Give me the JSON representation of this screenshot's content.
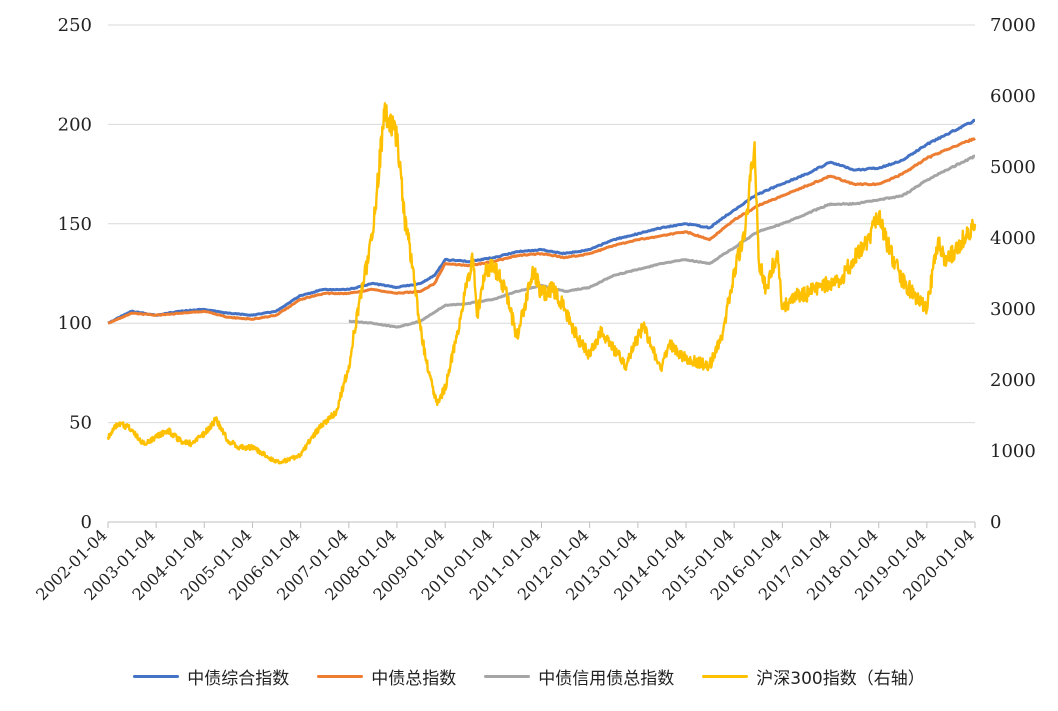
{
  "chart_data": {
    "type": "line",
    "title": "",
    "xlabel": "",
    "ylabel": "",
    "ylim": [
      0,
      250
    ],
    "y2lim": [
      0,
      7000
    ],
    "y_ticks": [
      0,
      50,
      100,
      150,
      200,
      250
    ],
    "y2_ticks": [
      0,
      1000,
      2000,
      3000,
      4000,
      5000,
      6000,
      7000
    ],
    "x_tick_labels": [
      "2002-01-04",
      "2003-01-04",
      "2004-01-04",
      "2005-01-04",
      "2006-01-04",
      "2007-01-04",
      "2008-01-04",
      "2009-01-04",
      "2010-01-04",
      "2011-01-04",
      "2012-01-04",
      "2013-01-04",
      "2014-01-04",
      "2015-01-04",
      "2016-01-04",
      "2017-01-04",
      "2018-01-04",
      "2019-01-04",
      "2020-01-04"
    ],
    "grid": "horizontal",
    "legend_position": "bottom",
    "series": [
      {
        "name": "中债综合指数",
        "color": "#4472C4",
        "axis": "left",
        "points": [
          [
            "2002-01-04",
            100
          ],
          [
            "2002-07-01",
            106
          ],
          [
            "2003-01-04",
            104
          ],
          [
            "2003-07-01",
            106
          ],
          [
            "2004-01-04",
            107
          ],
          [
            "2004-07-01",
            105
          ],
          [
            "2005-01-04",
            104
          ],
          [
            "2005-07-01",
            106
          ],
          [
            "2006-01-04",
            114
          ],
          [
            "2006-07-01",
            117
          ],
          [
            "2007-01-04",
            117
          ],
          [
            "2007-07-01",
            120
          ],
          [
            "2008-01-04",
            118
          ],
          [
            "2008-07-01",
            120
          ],
          [
            "2008-10-15",
            124
          ],
          [
            "2009-01-04",
            132
          ],
          [
            "2009-07-01",
            131
          ],
          [
            "2010-01-04",
            133
          ],
          [
            "2010-07-01",
            136
          ],
          [
            "2011-01-04",
            137
          ],
          [
            "2011-07-01",
            135
          ],
          [
            "2012-01-04",
            137
          ],
          [
            "2012-07-01",
            142
          ],
          [
            "2013-01-04",
            145
          ],
          [
            "2013-07-01",
            148
          ],
          [
            "2014-01-04",
            150
          ],
          [
            "2014-07-01",
            148
          ],
          [
            "2015-01-04",
            157
          ],
          [
            "2015-07-01",
            165
          ],
          [
            "2016-01-04",
            170
          ],
          [
            "2016-07-01",
            175
          ],
          [
            "2017-01-04",
            181
          ],
          [
            "2017-07-01",
            177
          ],
          [
            "2018-01-04",
            178
          ],
          [
            "2018-07-01",
            182
          ],
          [
            "2019-01-04",
            190
          ],
          [
            "2019-07-01",
            196
          ],
          [
            "2020-01-04",
            202
          ]
        ]
      },
      {
        "name": "中债总指数",
        "color": "#ED7D31",
        "axis": "left",
        "points": [
          [
            "2002-01-04",
            100
          ],
          [
            "2002-07-01",
            105
          ],
          [
            "2003-01-04",
            104
          ],
          [
            "2003-07-01",
            105
          ],
          [
            "2004-01-04",
            106
          ],
          [
            "2004-07-01",
            103
          ],
          [
            "2005-01-04",
            102
          ],
          [
            "2005-07-01",
            104
          ],
          [
            "2006-01-04",
            112
          ],
          [
            "2006-07-01",
            115
          ],
          [
            "2007-01-04",
            115
          ],
          [
            "2007-07-01",
            117
          ],
          [
            "2008-01-04",
            115
          ],
          [
            "2008-07-01",
            116
          ],
          [
            "2008-10-15",
            120
          ],
          [
            "2009-01-04",
            130
          ],
          [
            "2009-07-01",
            129
          ],
          [
            "2010-01-04",
            131
          ],
          [
            "2010-07-01",
            134
          ],
          [
            "2011-01-04",
            135
          ],
          [
            "2011-07-01",
            133
          ],
          [
            "2012-01-04",
            135
          ],
          [
            "2012-07-01",
            139
          ],
          [
            "2013-01-04",
            142
          ],
          [
            "2013-07-01",
            144
          ],
          [
            "2014-01-04",
            146
          ],
          [
            "2014-07-01",
            142
          ],
          [
            "2015-01-04",
            152
          ],
          [
            "2015-07-01",
            159
          ],
          [
            "2016-01-04",
            164
          ],
          [
            "2016-07-01",
            169
          ],
          [
            "2017-01-04",
            174
          ],
          [
            "2017-07-01",
            170
          ],
          [
            "2018-01-04",
            170
          ],
          [
            "2018-07-01",
            175
          ],
          [
            "2019-01-04",
            183
          ],
          [
            "2019-07-01",
            188
          ],
          [
            "2020-01-04",
            193
          ]
        ]
      },
      {
        "name": "中债信用债总指数",
        "color": "#A5A5A5",
        "axis": "left",
        "points": [
          [
            "2007-01-04",
            101
          ],
          [
            "2007-07-01",
            100
          ],
          [
            "2008-01-04",
            98
          ],
          [
            "2008-07-01",
            101
          ],
          [
            "2009-01-04",
            109
          ],
          [
            "2009-07-01",
            110
          ],
          [
            "2010-01-04",
            112
          ],
          [
            "2010-07-01",
            116
          ],
          [
            "2011-01-04",
            119
          ],
          [
            "2011-07-01",
            116
          ],
          [
            "2012-01-04",
            118
          ],
          [
            "2012-07-01",
            124
          ],
          [
            "2013-01-04",
            127
          ],
          [
            "2013-07-01",
            130
          ],
          [
            "2014-01-04",
            132
          ],
          [
            "2014-07-01",
            130
          ],
          [
            "2015-01-04",
            138
          ],
          [
            "2015-07-01",
            146
          ],
          [
            "2016-01-04",
            150
          ],
          [
            "2016-07-01",
            155
          ],
          [
            "2017-01-04",
            160
          ],
          [
            "2017-07-01",
            160
          ],
          [
            "2018-01-04",
            162
          ],
          [
            "2018-07-01",
            164
          ],
          [
            "2019-01-04",
            172
          ],
          [
            "2019-07-01",
            178
          ],
          [
            "2020-01-04",
            184
          ]
        ]
      },
      {
        "name": "沪深300指数（右轴）",
        "color": "#FFC000",
        "axis": "right",
        "points": [
          [
            "2002-01-04",
            1200
          ],
          [
            "2002-04-01",
            1400
          ],
          [
            "2002-07-01",
            1300
          ],
          [
            "2002-10-01",
            1100
          ],
          [
            "2003-01-04",
            1200
          ],
          [
            "2003-04-01",
            1300
          ],
          [
            "2003-07-01",
            1150
          ],
          [
            "2003-10-01",
            1100
          ],
          [
            "2004-01-04",
            1250
          ],
          [
            "2004-04-01",
            1450
          ],
          [
            "2004-07-01",
            1150
          ],
          [
            "2004-10-01",
            1050
          ],
          [
            "2005-01-04",
            1050
          ],
          [
            "2005-04-01",
            950
          ],
          [
            "2005-07-01",
            850
          ],
          [
            "2005-10-01",
            870
          ],
          [
            "2006-01-04",
            950
          ],
          [
            "2006-04-01",
            1200
          ],
          [
            "2006-07-01",
            1400
          ],
          [
            "2006-10-01",
            1550
          ],
          [
            "2007-01-04",
            2200
          ],
          [
            "2007-04-01",
            3200
          ],
          [
            "2007-07-01",
            4000
          ],
          [
            "2007-10-01",
            5800
          ],
          [
            "2008-01-04",
            5400
          ],
          [
            "2008-03-01",
            4300
          ],
          [
            "2008-05-01",
            3600
          ],
          [
            "2008-07-01",
            2700
          ],
          [
            "2008-09-01",
            2100
          ],
          [
            "2008-11-04",
            1650
          ],
          [
            "2009-01-04",
            1900
          ],
          [
            "2009-04-01",
            2600
          ],
          [
            "2009-07-01",
            3500
          ],
          [
            "2009-08-04",
            3700
          ],
          [
            "2009-09-01",
            2900
          ],
          [
            "2009-11-01",
            3500
          ],
          [
            "2010-01-04",
            3600
          ],
          [
            "2010-04-01",
            3300
          ],
          [
            "2010-07-01",
            2600
          ],
          [
            "2010-10-01",
            3300
          ],
          [
            "2010-11-10",
            3550
          ],
          [
            "2011-01-04",
            3200
          ],
          [
            "2011-04-01",
            3300
          ],
          [
            "2011-07-01",
            3000
          ],
          [
            "2011-10-01",
            2600
          ],
          [
            "2012-01-04",
            2350
          ],
          [
            "2012-04-01",
            2700
          ],
          [
            "2012-07-01",
            2450
          ],
          [
            "2012-10-01",
            2200
          ],
          [
            "2013-01-04",
            2600
          ],
          [
            "2013-02-15",
            2750
          ],
          [
            "2013-06-25",
            2150
          ],
          [
            "2013-09-01",
            2500
          ],
          [
            "2014-01-04",
            2300
          ],
          [
            "2014-04-01",
            2250
          ],
          [
            "2014-07-01",
            2200
          ],
          [
            "2014-10-01",
            2600
          ],
          [
            "2015-01-04",
            3500
          ],
          [
            "2015-04-01",
            4200
          ],
          [
            "2015-06-08",
            5350
          ],
          [
            "2015-07-08",
            3700
          ],
          [
            "2015-09-01",
            3300
          ],
          [
            "2015-12-01",
            3800
          ],
          [
            "2016-01-04",
            3000
          ],
          [
            "2016-04-01",
            3200
          ],
          [
            "2016-07-01",
            3200
          ],
          [
            "2016-10-01",
            3300
          ],
          [
            "2017-01-04",
            3350
          ],
          [
            "2017-04-01",
            3450
          ],
          [
            "2017-07-01",
            3700
          ],
          [
            "2017-10-01",
            3950
          ],
          [
            "2018-01-04",
            4300
          ],
          [
            "2018-04-01",
            3800
          ],
          [
            "2018-07-01",
            3400
          ],
          [
            "2018-10-01",
            3200
          ],
          [
            "2019-01-04",
            3000
          ],
          [
            "2019-04-01",
            4000
          ],
          [
            "2019-06-01",
            3650
          ],
          [
            "2019-09-01",
            3900
          ],
          [
            "2020-01-04",
            4200
          ]
        ]
      }
    ]
  }
}
